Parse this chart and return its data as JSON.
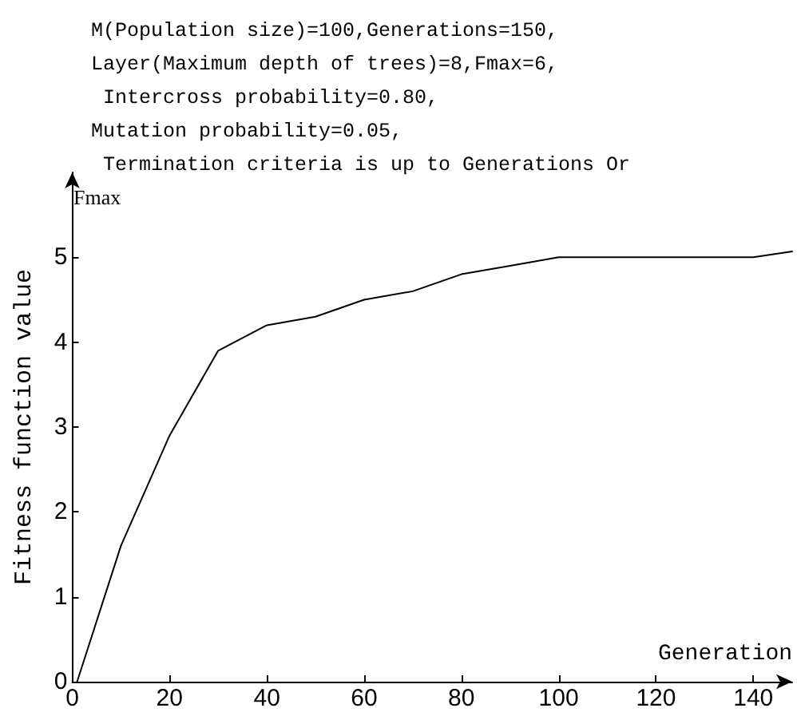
{
  "chart_data": {
    "type": "line",
    "title": "M(Population size)=100,Generations=150,\nLayer(Maximum depth of trees)=8,Fmax=6,\n Intercross probability=0.80,\nMutation probability=0.05,\n Termination criteria is up to Generations Or",
    "annotations": [
      "Fmax"
    ],
    "xlabel": "Generation",
    "ylabel": "Fitness function value",
    "x": [
      1,
      10,
      20,
      30,
      40,
      50,
      60,
      70,
      80,
      90,
      100,
      140,
      148
    ],
    "series": [
      {
        "color": "#000000",
        "values": [
          0,
          1.6,
          2.9,
          3.9,
          4.2,
          4.3,
          4.5,
          4.6,
          4.8,
          4.9,
          5.0,
          5.0,
          5.07
        ]
      }
    ],
    "xlim": [
      0,
      148
    ],
    "xticks": [
      0,
      20,
      40,
      60,
      80,
      100,
      120,
      140
    ],
    "ylim": [
      0,
      6
    ],
    "yticks": [
      0,
      1,
      2,
      3,
      4,
      5
    ],
    "grid": false,
    "marker": "none",
    "line_style": "solid"
  }
}
